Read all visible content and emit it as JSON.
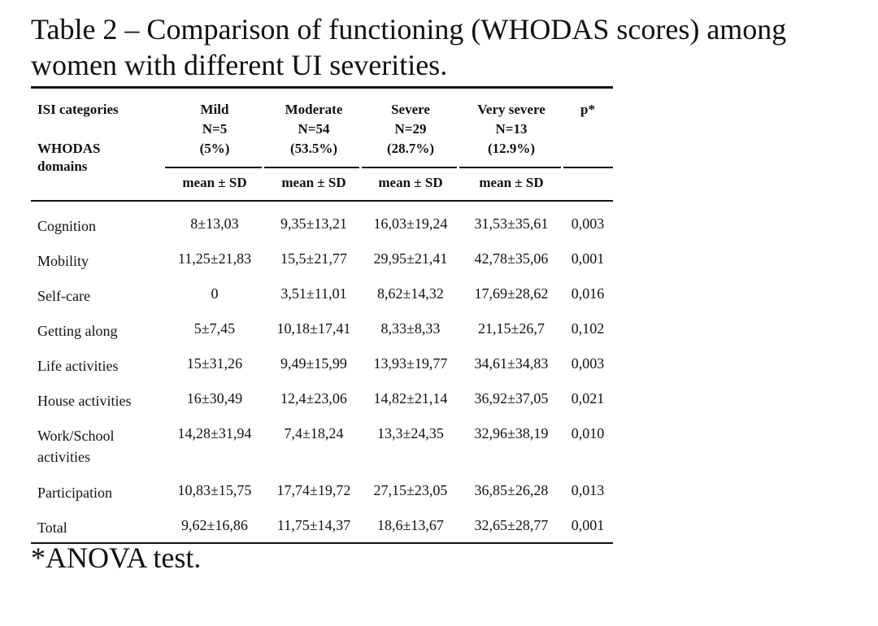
{
  "title": {
    "line1": "Table 2 – Comparison of functioning (WHODAS scores) among",
    "line2": "women with different UI severities."
  },
  "header": {
    "label_line1": "ISI categories",
    "label_line2": "WHODAS",
    "label_line3": "domains",
    "columns": [
      {
        "name": "Mild",
        "n": "N=5",
        "pct": "(5%)"
      },
      {
        "name": "Moderate",
        "n": "N=54",
        "pct": "(53.5%)"
      },
      {
        "name": "Severe",
        "n": "N=29",
        "pct": "(28.7%)"
      },
      {
        "name": "Very severe",
        "n": "N=13",
        "pct": "(12.9%)"
      }
    ],
    "p_label": "p*",
    "stat_label": "mean ± SD"
  },
  "rows": [
    {
      "domain": "Cognition",
      "values": [
        "8±13,03",
        "9,35±13,21",
        "16,03±19,24",
        "31,53±35,61"
      ],
      "p": "0,003"
    },
    {
      "domain": "Mobility",
      "values": [
        "11,25±21,83",
        "15,5±21,77",
        "29,95±21,41",
        "42,78±35,06"
      ],
      "p": "0,001"
    },
    {
      "domain": "Self-care",
      "values": [
        "0",
        "3,51±11,01",
        "8,62±14,32",
        "17,69±28,62"
      ],
      "p": "0,016"
    },
    {
      "domain": "Getting along",
      "values": [
        "5±7,45",
        "10,18±17,41",
        "8,33±8,33",
        "21,15±26,7"
      ],
      "p": "0,102"
    },
    {
      "domain": "Life activities",
      "values": [
        "15±31,26",
        "9,49±15,99",
        "13,93±19,77",
        "34,61±34,83"
      ],
      "p": "0,003"
    },
    {
      "domain": "House activities",
      "values": [
        "16±30,49",
        "12,4±23,06",
        "14,82±21,14",
        "36,92±37,05"
      ],
      "p": "0,021"
    },
    {
      "domain": "Work/School",
      "domain2": "activities",
      "values": [
        "14,28±31,94",
        "7,4±18,24",
        "13,3±24,35",
        "32,96±38,19"
      ],
      "p": "0,010"
    },
    {
      "domain": "Participation",
      "values": [
        "10,83±15,75",
        "17,74±19,72",
        "27,15±23,05",
        "36,85±26,28"
      ],
      "p": "0,013"
    },
    {
      "domain": "Total",
      "values": [
        "9,62±16,86",
        "11,75±14,37",
        "18,6±13,67",
        "32,65±28,77"
      ],
      "p": "0,001"
    }
  ],
  "footnote": "*ANOVA test."
}
